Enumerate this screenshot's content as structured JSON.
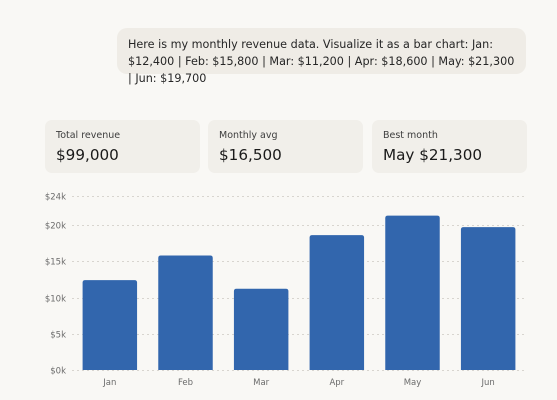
{
  "conversation": {
    "user_message": "Here is my monthly revenue data. Visualize it as a bar chart: Jan: $12,400 | Feb: $15,800 | Mar: $11,200 | Apr: $18,600 | May: $21,300 | Jun: $19,700"
  },
  "stats": [
    {
      "label": "Total revenue",
      "value": "$99,000"
    },
    {
      "label": "Monthly avg",
      "value": "$16,500"
    },
    {
      "label": "Best month",
      "value": "May $21,300"
    }
  ],
  "colors": {
    "bar": "#3266ad",
    "background": "#f9f8f5",
    "card": "#f1efea"
  },
  "chart_data": {
    "type": "bar",
    "categories": [
      "Jan",
      "Feb",
      "Mar",
      "Apr",
      "May",
      "Jun"
    ],
    "values": [
      12400,
      15800,
      11200,
      18600,
      21300,
      19700
    ],
    "ylim": [
      0,
      24000
    ],
    "yticks": [
      0,
      5000,
      10000,
      15000,
      20000,
      24000
    ],
    "ytick_labels": [
      "$0k",
      "$5k",
      "$10k",
      "$15k",
      "$20k",
      "$24k"
    ],
    "grid": true,
    "title": "",
    "xlabel": "",
    "ylabel": ""
  }
}
